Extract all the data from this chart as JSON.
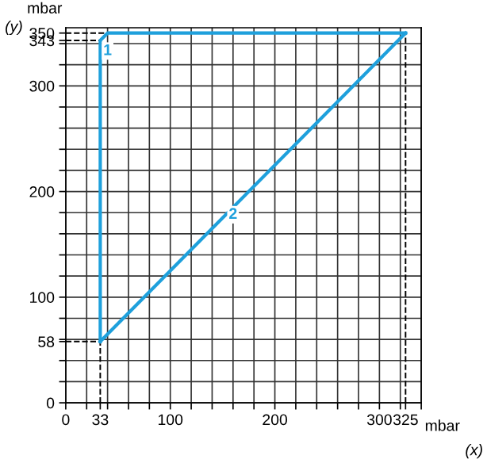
{
  "chart_data": {
    "type": "line",
    "xlabel": "mbar",
    "ylabel": "mbar",
    "annotations": [
      "(x)",
      "(y)",
      {
        "text": "1",
        "x": 40,
        "y": 333
      },
      {
        "text": "2",
        "x": 160,
        "y": 178
      }
    ],
    "series": [
      {
        "x": [
          33,
          33,
          40,
          325
        ],
        "values": [
          58,
          343,
          350,
          350
        ],
        "color": "#1ea0dc"
      },
      {
        "x": [
          33,
          325
        ],
        "values": [
          58,
          350
        ],
        "color": "#1ea0dc"
      }
    ],
    "xlim": [
      0,
      340
    ],
    "ylim": [
      0,
      355
    ],
    "xticks": [
      0,
      {
        "value": 20,
        "label": null
      },
      33,
      {
        "value": 40,
        "label": null
      },
      {
        "value": 60,
        "label": null
      },
      {
        "value": 80,
        "label": null
      },
      100,
      {
        "value": 120,
        "label": null
      },
      {
        "value": 140,
        "label": null
      },
      {
        "value": 160,
        "label": null
      },
      {
        "value": 180,
        "label": null
      },
      200,
      {
        "value": 220,
        "label": null
      },
      {
        "value": 240,
        "label": null
      },
      {
        "value": 260,
        "label": null
      },
      {
        "value": 280,
        "label": null
      },
      300,
      325,
      {
        "value": 320,
        "label": null
      },
      {
        "value": 340,
        "label": null
      }
    ],
    "yticks": [
      0,
      {
        "value": 20,
        "label": null
      },
      {
        "value": 40,
        "label": null
      },
      58,
      {
        "value": 60,
        "label": null
      },
      {
        "value": 80,
        "label": null
      },
      100,
      {
        "value": 120,
        "label": null
      },
      {
        "value": 140,
        "label": null
      },
      {
        "value": 160,
        "label": null
      },
      {
        "value": 180,
        "label": null
      },
      200,
      {
        "value": 220,
        "label": null
      },
      {
        "value": 240,
        "label": null
      },
      {
        "value": 260,
        "label": null
      },
      {
        "value": 280,
        "label": null
      },
      300,
      {
        "value": 320,
        "label": null
      },
      {
        "value": 340,
        "label": null
      },
      343,
      350
    ],
    "grid": true,
    "legend": false,
    "marker": "none",
    "line_style": "solid",
    "ref_lines": [
      {
        "axis": "y",
        "value": 58,
        "color": "#000000",
        "line_style": "dashed"
      },
      {
        "axis": "y",
        "value": 343,
        "color": "#000000",
        "line_style": "dashed"
      },
      {
        "axis": "y",
        "value": 350,
        "color": "#000000",
        "line_style": "dashed"
      },
      {
        "axis": "x",
        "value": 33,
        "color": "#000000",
        "line_style": "dashed"
      },
      {
        "axis": "x",
        "value": 325,
        "color": "#000000",
        "line_style": "dashed"
      }
    ]
  }
}
